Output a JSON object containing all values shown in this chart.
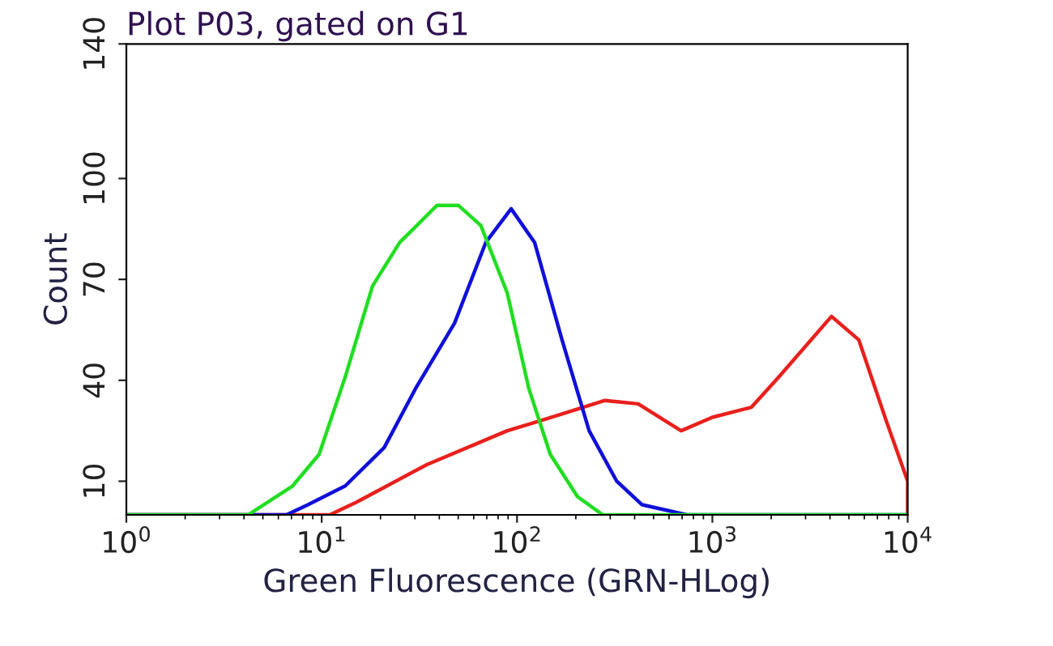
{
  "chart_data": {
    "type": "line",
    "title": "Plot P03, gated on G1",
    "xlabel": "Green Fluorescence (GRN-HLog)",
    "ylabel": "Count",
    "log": "x",
    "xlim": [
      1,
      10000
    ],
    "xticks": [
      {
        "value": 1,
        "label": "10$^{0}$"
      },
      {
        "value": 10,
        "label": "10$^{1}$"
      },
      {
        "value": 100,
        "label": "10$^{2}$"
      },
      {
        "value": 1000,
        "label": "10$^{3}$"
      },
      {
        "value": 10000,
        "label": "10$^{4}$"
      }
    ],
    "ylim": [
      0,
      140
    ],
    "yticks": [
      10,
      40,
      70,
      100,
      140
    ],
    "grid": false,
    "legend": false,
    "marker": "none",
    "line_style": "solid",
    "series": [
      {
        "color": "#e8201c",
        "x": [
          1,
          11,
          15.1,
          34.7,
          89.1,
          132,
          282,
          417,
          692,
          1000,
          1585,
          2188,
          4074,
          5623,
          7762,
          10000,
          10000
        ],
        "values": [
          0,
          0,
          3.8,
          15,
          25,
          28,
          34,
          33,
          25,
          29,
          32,
          41,
          59,
          52,
          28,
          10,
          0
        ]
      },
      {
        "color": "#1010d8",
        "x": [
          1,
          6.6,
          8.5,
          13.2,
          20.9,
          30.2,
          47.9,
          69.2,
          93.3,
          123,
          170,
          234,
          324,
          437,
          741,
          10000
        ],
        "values": [
          0,
          0,
          3,
          8.6,
          20,
          37.5,
          57,
          81,
          91,
          81,
          52,
          25,
          10,
          3,
          0,
          0
        ]
      },
      {
        "color": "#22dd22",
        "x": [
          1,
          4.2,
          7.1,
          9.7,
          13.2,
          18.2,
          25.1,
          38.9,
          50.1,
          65.3,
          89.1,
          115,
          148,
          204,
          275,
          10000
        ],
        "values": [
          0,
          0,
          8.6,
          18,
          41,
          68,
          81,
          92,
          92,
          86,
          66,
          37.5,
          18,
          5.4,
          0,
          0
        ]
      }
    ]
  }
}
